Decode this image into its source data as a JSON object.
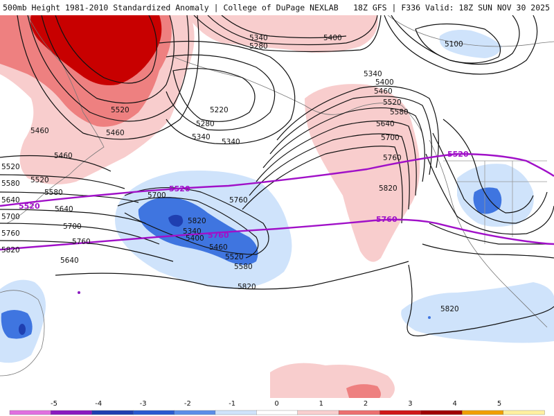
{
  "header": {
    "title": "500mb Height 1981-2010 Standardized Anomaly | College of DuPage NEXLAB",
    "run": "18Z GFS | F336 Valid: 18Z SUN NOV 30 2025"
  },
  "contour_labels": [
    {
      "id": "h5340a",
      "text": "5340"
    },
    {
      "id": "h5400a",
      "text": "5400"
    },
    {
      "id": "h5280a",
      "text": "5280"
    },
    {
      "id": "h5100",
      "text": "5100"
    },
    {
      "id": "h5520a",
      "text": "5520"
    },
    {
      "id": "h5460a",
      "text": "5460"
    },
    {
      "id": "h5220",
      "text": "5220"
    },
    {
      "id": "h5280b",
      "text": "5280"
    },
    {
      "id": "h5340b",
      "text": "5340"
    },
    {
      "id": "h5340c",
      "text": "5340"
    },
    {
      "id": "h5340d",
      "text": "5340"
    },
    {
      "id": "h5400b",
      "text": "5400"
    },
    {
      "id": "h5460b",
      "text": "5460"
    },
    {
      "id": "h5520b",
      "text": "5520"
    },
    {
      "id": "h5580a",
      "text": "5580"
    },
    {
      "id": "h5640a",
      "text": "5640"
    },
    {
      "id": "h5700a",
      "text": "5700"
    },
    {
      "id": "h5760a",
      "text": "5760"
    },
    {
      "id": "h5460c",
      "text": "5460"
    },
    {
      "id": "h5520c",
      "text": "5520"
    },
    {
      "id": "h5580b",
      "text": "5580"
    },
    {
      "id": "h5640b",
      "text": "5640"
    },
    {
      "id": "h5700b",
      "text": "5700"
    },
    {
      "id": "h5760b",
      "text": "5760"
    },
    {
      "id": "h5820a",
      "text": "5820"
    },
    {
      "id": "h5340e",
      "text": "5340"
    },
    {
      "id": "h5400c",
      "text": "5400"
    },
    {
      "id": "h5460d",
      "text": "5460"
    },
    {
      "id": "h5520d",
      "text": "5520"
    },
    {
      "id": "h5580c",
      "text": "5580"
    },
    {
      "id": "h5640c",
      "text": "5640"
    },
    {
      "id": "h5700c",
      "text": "5700"
    },
    {
      "id": "h5760c",
      "text": "5760"
    },
    {
      "id": "h5820b",
      "text": "5820"
    },
    {
      "id": "h5820c",
      "text": "5820"
    },
    {
      "id": "h5820d",
      "text": "5820"
    },
    {
      "id": "h5460e",
      "text": "5460"
    },
    {
      "id": "h5520e",
      "text": "5520"
    },
    {
      "id": "h5580d",
      "text": "5580"
    },
    {
      "id": "h5640d",
      "text": "5640"
    },
    {
      "id": "h5700d",
      "text": "5700"
    },
    {
      "id": "h5760d",
      "text": "5760"
    },
    {
      "id": "h5820e",
      "text": "5820"
    }
  ],
  "reference_labels": [
    {
      "id": "ref5520a",
      "text": "5520"
    },
    {
      "id": "ref5520b",
      "text": "5520"
    },
    {
      "id": "ref5520c",
      "text": "5520"
    },
    {
      "id": "ref5760a",
      "text": "5760"
    },
    {
      "id": "ref5760b",
      "text": "5760"
    }
  ],
  "colorbar": {
    "ticks": [
      "-5",
      "-4",
      "-3",
      "-2",
      "-1",
      "0",
      "1",
      "2",
      "3",
      "4",
      "5"
    ],
    "colors": [
      "#e070e0",
      "#8a1ac0",
      "#1f3fb0",
      "#2a5ad0",
      "#5b8ee8",
      "#cfe3fb",
      "#ffffff",
      "#f9cfcf",
      "#ec7070",
      "#d01818",
      "#a00000",
      "#f0a000",
      "#fff0a0"
    ]
  },
  "colors": {
    "positive_light": "#f8cdcd",
    "positive_mid": "#ee8080",
    "positive_strong": "#c80000",
    "negative_light": "#cfe3fb",
    "negative_mid": "#3f75e0",
    "negative_strong": "#1f3fb0",
    "reference_line": "#a010c8",
    "contour": "#111111"
  }
}
